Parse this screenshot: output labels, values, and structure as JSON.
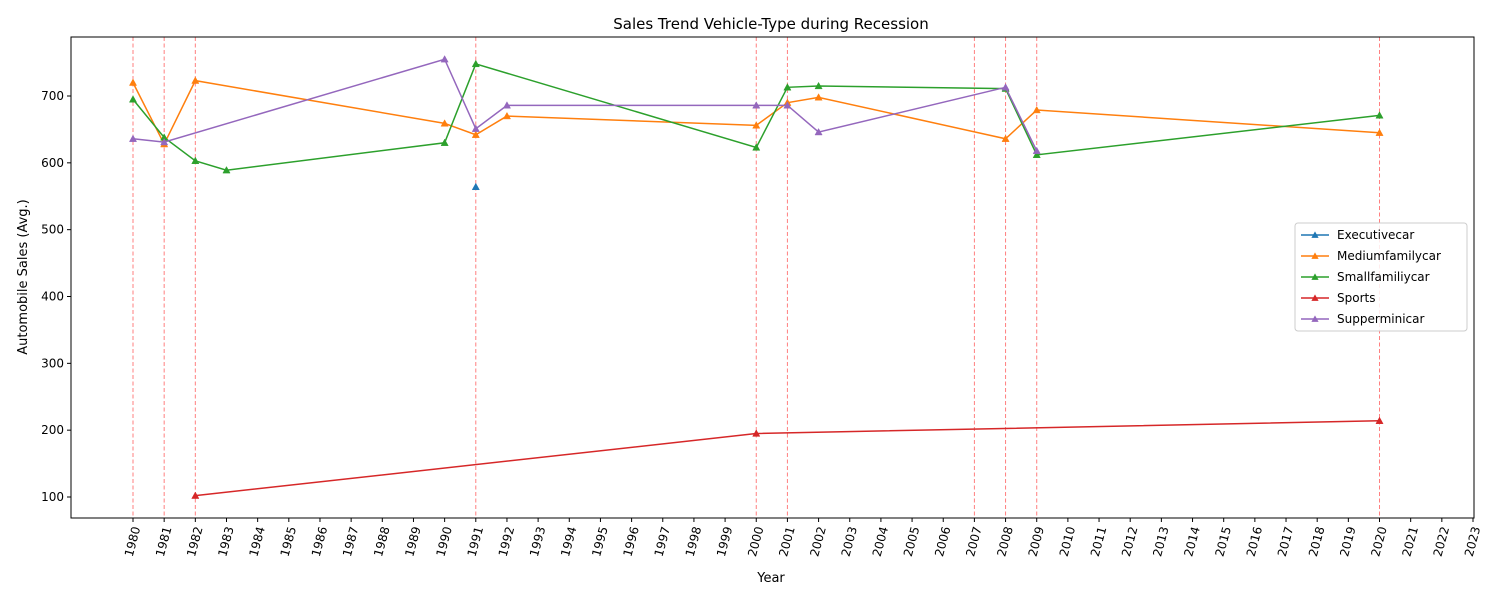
{
  "chart_data": {
    "type": "line",
    "title": "Sales Trend Vehicle-Type during Recession",
    "xlabel": "Year",
    "ylabel": "Automobile Sales (Avg.)",
    "xlim": [
      1980,
      2023
    ],
    "ylim": [
      70,
      785
    ],
    "xticks": [
      1980,
      1981,
      1982,
      1983,
      1984,
      1985,
      1986,
      1987,
      1988,
      1989,
      1990,
      1991,
      1992,
      1993,
      1994,
      1995,
      1996,
      1997,
      1998,
      1999,
      2000,
      2001,
      2002,
      2003,
      2004,
      2005,
      2006,
      2007,
      2008,
      2009,
      2010,
      2011,
      2012,
      2013,
      2014,
      2015,
      2016,
      2017,
      2018,
      2019,
      2020,
      2021,
      2022,
      2023
    ],
    "yticks": [
      100,
      200,
      300,
      400,
      500,
      600,
      700
    ],
    "grid": false,
    "legend_position": "center-right",
    "recession_years": [
      1980,
      1981,
      1982,
      1991,
      2000,
      2001,
      2007,
      2008,
      2009,
      2020
    ],
    "recession_color": "#ff0000",
    "series": [
      {
        "name": "Executivecar",
        "color": "#1f77b4",
        "points": [
          [
            1991,
            564
          ]
        ]
      },
      {
        "name": "Mediumfamilycar",
        "color": "#ff7f0e",
        "points": [
          [
            1980,
            720
          ],
          [
            1981,
            628
          ],
          [
            1982,
            723
          ],
          [
            1990,
            659
          ],
          [
            1991,
            642
          ],
          [
            1992,
            670
          ],
          [
            2000,
            656
          ],
          [
            2001,
            690
          ],
          [
            2002,
            698
          ],
          [
            2008,
            636
          ],
          [
            2009,
            679
          ],
          [
            2020,
            645
          ]
        ]
      },
      {
        "name": "Smallfamiliycar",
        "color": "#2ca02c",
        "points": [
          [
            1980,
            695
          ],
          [
            1981,
            638
          ],
          [
            1982,
            603
          ],
          [
            1983,
            589
          ],
          [
            1990,
            630
          ],
          [
            1991,
            748
          ],
          [
            2000,
            623
          ],
          [
            2001,
            713
          ],
          [
            2002,
            715
          ],
          [
            2008,
            711
          ],
          [
            2009,
            612
          ],
          [
            2020,
            671
          ]
        ]
      },
      {
        "name": "Sports",
        "color": "#d62728",
        "points": [
          [
            1982,
            102
          ],
          [
            2000,
            195
          ],
          [
            2020,
            214
          ]
        ]
      },
      {
        "name": "Supperminicar",
        "color": "#9467bd",
        "points": [
          [
            1980,
            636
          ],
          [
            1981,
            631
          ],
          [
            1990,
            755
          ],
          [
            1991,
            651
          ],
          [
            1992,
            686
          ],
          [
            2000,
            686
          ],
          [
            2001,
            686
          ],
          [
            2002,
            646
          ],
          [
            2008,
            713
          ],
          [
            2009,
            618
          ]
        ]
      }
    ]
  }
}
